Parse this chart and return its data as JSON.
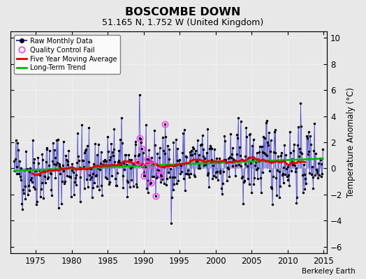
{
  "title": "BOSCOMBE DOWN",
  "subtitle": "51.165 N, 1.752 W (United Kingdom)",
  "ylabel": "Temperature Anomaly (°C)",
  "credit": "Berkeley Earth",
  "xlim": [
    1971.5,
    2015.5
  ],
  "ylim": [
    -6.5,
    10.5
  ],
  "yticks": [
    -6,
    -4,
    -2,
    0,
    2,
    4,
    6,
    8,
    10
  ],
  "xticks": [
    1975,
    1980,
    1985,
    1990,
    1995,
    2000,
    2005,
    2010,
    2015
  ],
  "bg_color": "#e8e8e8",
  "plot_bg_color": "#e8e8e8",
  "raw_line_color": "#3333cc",
  "raw_fill_color": "#aaaaee",
  "raw_dot_color": "#000000",
  "ma_color": "#dd0000",
  "trend_color": "#00bb00",
  "qc_color": "#ff44ff",
  "seed": 42
}
